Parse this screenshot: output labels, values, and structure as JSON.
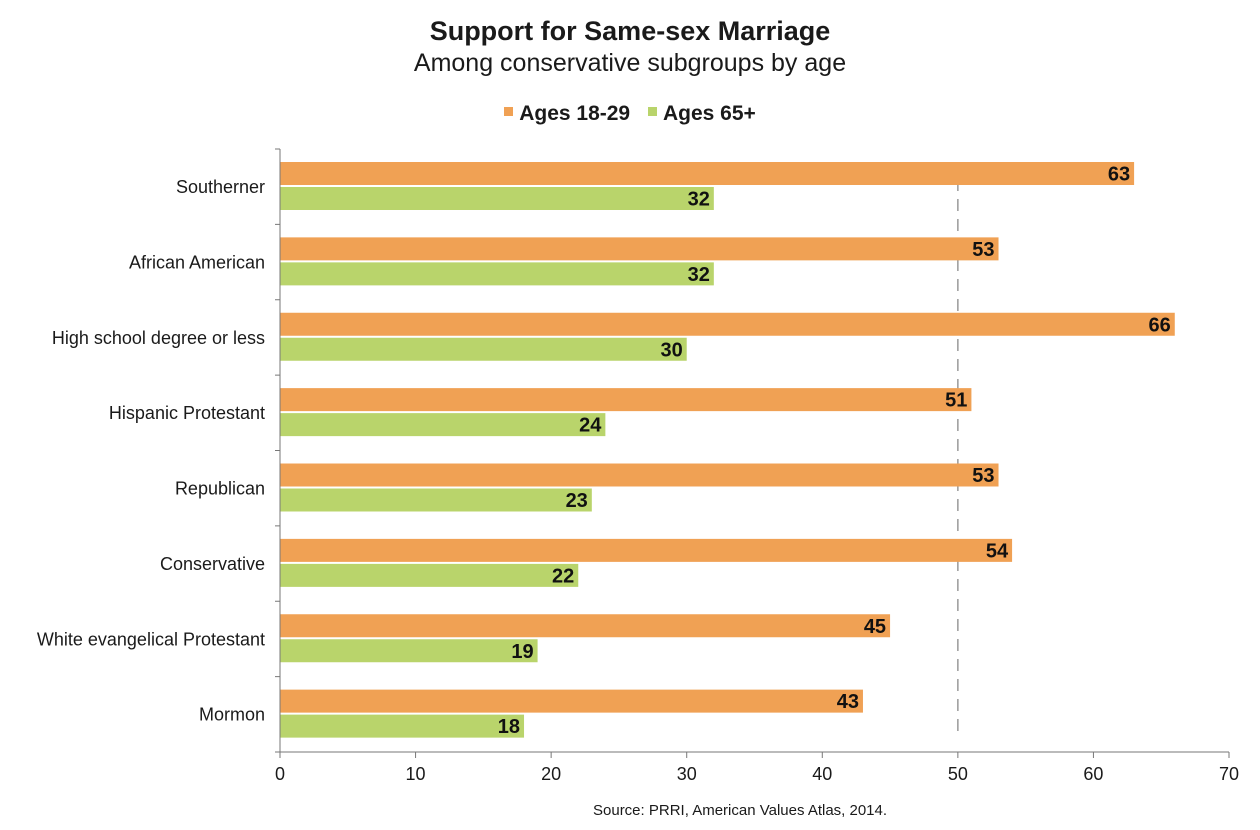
{
  "chart_data": {
    "type": "bar",
    "orientation": "horizontal",
    "title": "Support for Same-sex Marriage",
    "subtitle": "Among conservative subgroups by age",
    "categories": [
      "Southerner",
      "African American",
      "High school degree or less",
      "Hispanic Protestant",
      "Republican",
      "Conservative",
      "White evangelical Protestant",
      "Mormon"
    ],
    "series": [
      {
        "name": "Ages 18-29",
        "color": "#F0A154",
        "values": [
          63,
          53,
          66,
          51,
          53,
          54,
          45,
          43
        ]
      },
      {
        "name": "Ages 65+",
        "color": "#B9D46B",
        "values": [
          32,
          32,
          30,
          24,
          23,
          22,
          19,
          18
        ]
      }
    ],
    "xlim": [
      0,
      70
    ],
    "xticks": [
      0,
      10,
      20,
      30,
      40,
      50,
      60,
      70
    ],
    "reference_line": 50,
    "legend_position": "top-center",
    "grid": false
  },
  "source": "Source: PRRI, American Values Atlas, 2014."
}
